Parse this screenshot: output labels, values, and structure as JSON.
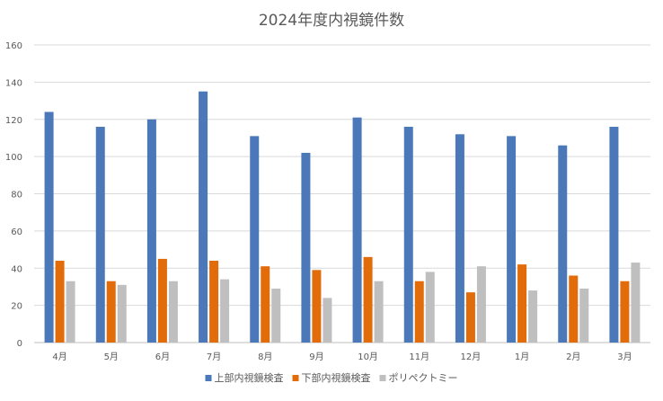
{
  "chart_data": {
    "type": "bar",
    "title": "2024年度内視鏡件数",
    "xlabel": "",
    "ylabel": "",
    "ylim": [
      0,
      160
    ],
    "yticks": [
      0,
      20,
      40,
      60,
      80,
      100,
      120,
      140,
      160
    ],
    "grid": true,
    "legend_position": "bottom",
    "categories": [
      "4月",
      "5月",
      "6月",
      "7月",
      "8月",
      "9月",
      "10月",
      "11月",
      "12月",
      "1月",
      "2月",
      "3月"
    ],
    "series": [
      {
        "name": "上部内視鏡検査",
        "color": "#4a78b8",
        "values": [
          124,
          116,
          120,
          135,
          111,
          102,
          121,
          116,
          112,
          111,
          106,
          116
        ]
      },
      {
        "name": "下部内視鏡検査",
        "color": "#e36c0a",
        "values": [
          44,
          33,
          45,
          44,
          41,
          39,
          46,
          33,
          27,
          42,
          36,
          33
        ]
      },
      {
        "name": "ポリペクトミー",
        "color": "#bfbfbf",
        "values": [
          33,
          31,
          33,
          34,
          29,
          24,
          33,
          38,
          41,
          28,
          29,
          43
        ]
      }
    ]
  }
}
